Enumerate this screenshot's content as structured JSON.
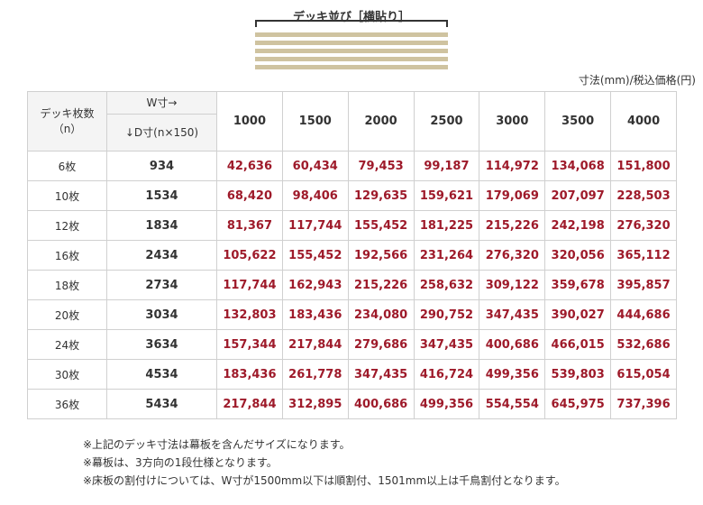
{
  "diagram": {
    "title": "デッキ並び［横貼り］",
    "plank_color": "#cfc3a0",
    "plank_count": 5
  },
  "unit_note": "寸法(mm)/税込価格(円)",
  "table": {
    "header": {
      "count_label_line1": "デッキ枚数",
      "count_label_line2": "（n）",
      "w_label": "W寸→",
      "d_label": "↓D寸(n×150)",
      "widths": [
        "1000",
        "1500",
        "2000",
        "2500",
        "3000",
        "3500",
        "4000"
      ]
    },
    "rows": [
      {
        "count": "6枚",
        "d": "934",
        "prices": [
          "42,636",
          "60,434",
          "79,453",
          "99,187",
          "114,972",
          "134,068",
          "151,800"
        ]
      },
      {
        "count": "10枚",
        "d": "1534",
        "prices": [
          "68,420",
          "98,406",
          "129,635",
          "159,621",
          "179,069",
          "207,097",
          "228,503"
        ]
      },
      {
        "count": "12枚",
        "d": "1834",
        "prices": [
          "81,367",
          "117,744",
          "155,452",
          "181,225",
          "215,226",
          "242,198",
          "276,320"
        ]
      },
      {
        "count": "16枚",
        "d": "2434",
        "prices": [
          "105,622",
          "155,452",
          "192,566",
          "231,264",
          "276,320",
          "320,056",
          "365,112"
        ]
      },
      {
        "count": "18枚",
        "d": "2734",
        "prices": [
          "117,744",
          "162,943",
          "215,226",
          "258,632",
          "309,122",
          "359,678",
          "395,857"
        ]
      },
      {
        "count": "20枚",
        "d": "3034",
        "prices": [
          "132,803",
          "183,436",
          "234,080",
          "290,752",
          "347,435",
          "390,027",
          "444,686"
        ]
      },
      {
        "count": "24枚",
        "d": "3634",
        "prices": [
          "157,344",
          "217,844",
          "279,686",
          "347,435",
          "400,686",
          "466,015",
          "532,686"
        ]
      },
      {
        "count": "30枚",
        "d": "4534",
        "prices": [
          "183,436",
          "261,778",
          "347,435",
          "416,724",
          "499,356",
          "539,803",
          "615,054"
        ]
      },
      {
        "count": "36枚",
        "d": "5434",
        "prices": [
          "217,844",
          "312,895",
          "400,686",
          "499,356",
          "554,554",
          "645,975",
          "737,396"
        ]
      }
    ],
    "price_color": "#9e1a2a"
  },
  "notes": [
    "※上記のデッキ寸法は幕板を含んだサイズになります。",
    "※幕板は、3方向の1段仕様となります。",
    "※床板の割付けについては、W寸が1500mm以下は順割付、1501mm以上は千鳥割付となります。"
  ]
}
